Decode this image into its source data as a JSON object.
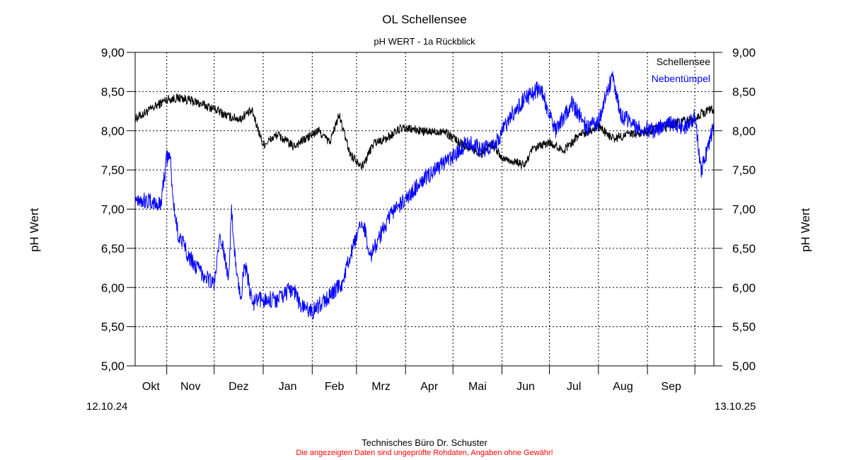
{
  "header": {
    "title": "OL Schellensee",
    "subtitle": "pH WERT - 1a Rückblick"
  },
  "footer": {
    "line1": "Technisches Büro Dr. Schuster",
    "line2": "Die angezeigten Daten sind ungeprüfte Rohdaten, Angaben ohne Gewähr!",
    "line2_color": "#ff0000"
  },
  "date_range": {
    "start": "12.10.24",
    "end": "13.10.25"
  },
  "chart_data": {
    "type": "line",
    "title": "OL Schellensee",
    "subtitle": "pH WERT - 1a Rückblick",
    "ylabel": "pH Wert",
    "ylabel_right": "pH Wert",
    "xlabel": "",
    "ylim": [
      5.0,
      9.0
    ],
    "yticks": [
      "5,00",
      "5,50",
      "6,00",
      "6,50",
      "7,00",
      "7,50",
      "8,00",
      "8,50",
      "9,00"
    ],
    "xlim": [
      "2024-10-12",
      "2025-10-13"
    ],
    "x_month_labels": [
      "Okt",
      "Nov",
      "Dez",
      "Jan",
      "Feb",
      "Mrz",
      "Apr",
      "Mai",
      "Jun",
      "Jul",
      "Aug",
      "Sep"
    ],
    "grid": true,
    "legend_position": "top-right",
    "series": [
      {
        "name": "Schellensee",
        "color": "#000000",
        "x": [
          "2024-10-12",
          "2024-10-20",
          "2024-11-01",
          "2024-11-10",
          "2024-11-20",
          "2024-12-01",
          "2024-12-10",
          "2024-12-18",
          "2024-12-20",
          "2024-12-25",
          "2025-01-01",
          "2025-01-10",
          "2025-01-20",
          "2025-01-28",
          "2025-02-05",
          "2025-02-12",
          "2025-02-18",
          "2025-02-25",
          "2025-03-05",
          "2025-03-12",
          "2025-03-20",
          "2025-03-28",
          "2025-04-05",
          "2025-04-15",
          "2025-04-25",
          "2025-05-05",
          "2025-05-15",
          "2025-05-20",
          "2025-05-25",
          "2025-06-01",
          "2025-06-10",
          "2025-06-15",
          "2025-06-20",
          "2025-06-25",
          "2025-07-01",
          "2025-07-10",
          "2025-07-20",
          "2025-08-01",
          "2025-08-10",
          "2025-08-20",
          "2025-09-01",
          "2025-09-10",
          "2025-09-20",
          "2025-09-30",
          "2025-10-05",
          "2025-10-13"
        ],
        "values": [
          8.15,
          8.25,
          8.4,
          8.42,
          8.36,
          8.28,
          8.18,
          8.15,
          8.2,
          8.25,
          7.82,
          7.95,
          7.8,
          7.9,
          8.0,
          7.85,
          8.2,
          7.7,
          7.55,
          7.85,
          7.9,
          8.02,
          8.02,
          7.98,
          8.0,
          7.85,
          7.75,
          7.7,
          7.85,
          7.65,
          7.6,
          7.55,
          7.75,
          7.8,
          7.85,
          7.75,
          7.95,
          8.05,
          7.9,
          7.95,
          7.98,
          8.05,
          8.1,
          8.15,
          8.22,
          8.28
        ]
      },
      {
        "name": "Nebentümpel",
        "color": "#0000ff",
        "x": [
          "2024-10-12",
          "2024-10-20",
          "2024-10-28",
          "2024-11-01",
          "2024-11-03",
          "2024-11-05",
          "2024-11-08",
          "2024-11-15",
          "2024-11-20",
          "2024-11-28",
          "2024-12-01",
          "2024-12-05",
          "2024-12-10",
          "2024-12-12",
          "2024-12-15",
          "2024-12-18",
          "2024-12-20",
          "2024-12-25",
          "2025-01-01",
          "2025-01-10",
          "2025-01-20",
          "2025-01-25",
          "2025-02-01",
          "2025-02-10",
          "2025-02-20",
          "2025-02-25",
          "2025-03-05",
          "2025-03-10",
          "2025-03-18",
          "2025-03-25",
          "2025-04-01",
          "2025-04-10",
          "2025-04-20",
          "2025-04-30",
          "2025-05-10",
          "2025-05-20",
          "2025-05-30",
          "2025-06-05",
          "2025-06-15",
          "2025-06-25",
          "2025-07-05",
          "2025-07-15",
          "2025-07-25",
          "2025-08-01",
          "2025-08-05",
          "2025-08-10",
          "2025-08-15",
          "2025-08-25",
          "2025-09-05",
          "2025-09-15",
          "2025-09-25",
          "2025-10-01",
          "2025-10-05",
          "2025-10-10",
          "2025-10-13"
        ],
        "values": [
          7.15,
          7.1,
          7.05,
          7.65,
          7.7,
          7.1,
          6.7,
          6.4,
          6.25,
          6.1,
          6.05,
          6.65,
          6.15,
          6.95,
          6.2,
          5.85,
          6.35,
          5.8,
          5.85,
          5.85,
          6.0,
          5.75,
          5.7,
          5.85,
          6.05,
          6.4,
          6.85,
          6.4,
          6.75,
          7.0,
          7.1,
          7.35,
          7.5,
          7.65,
          7.85,
          7.75,
          7.9,
          8.15,
          8.4,
          8.55,
          8.0,
          8.35,
          8.05,
          8.1,
          8.4,
          8.7,
          8.2,
          8.05,
          8.0,
          8.1,
          8.05,
          8.2,
          7.5,
          7.85,
          8.05
        ]
      }
    ]
  }
}
